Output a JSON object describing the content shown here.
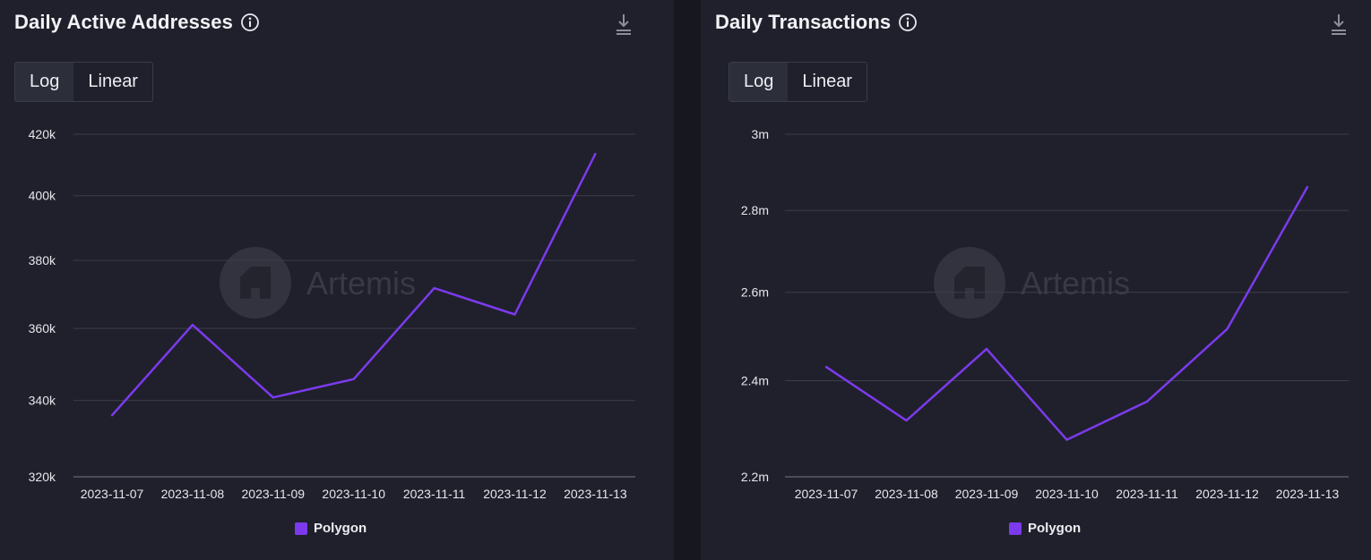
{
  "colors": {
    "series": "#7c3aed",
    "grid": "#3b3d4b",
    "axis": "#4a4c5a",
    "tick": "#e6e7ec",
    "watermark": "#4a4b56"
  },
  "watermark": {
    "text": "Artemis"
  },
  "panels": [
    {
      "title": "Daily Active Addresses",
      "toggle": {
        "options": [
          "Log",
          "Linear"
        ],
        "selected": "Log"
      },
      "legend": "Polygon"
    },
    {
      "title": "Daily Transactions",
      "toggle": {
        "options": [
          "Log",
          "Linear"
        ],
        "selected": "Log"
      },
      "legend": "Polygon"
    }
  ],
  "chart_data": [
    {
      "type": "line",
      "title": "Daily Active Addresses",
      "scale": "log",
      "x": [
        "2023-11-07",
        "2023-11-08",
        "2023-11-09",
        "2023-11-10",
        "2023-11-11",
        "2023-11-12",
        "2023-11-13"
      ],
      "series": [
        {
          "name": "Polygon",
          "values": [
            336000,
            361000,
            340800,
            345800,
            371700,
            364000,
            413500
          ]
        }
      ],
      "yticks": [
        320000,
        340000,
        360000,
        380000,
        400000,
        420000
      ],
      "ytick_labels": [
        "320k",
        "340k",
        "360k",
        "380k",
        "400k",
        "420k"
      ],
      "ylim": [
        320000,
        420000
      ],
      "grid": true,
      "legend_position": "bottom-center"
    },
    {
      "type": "line",
      "title": "Daily Transactions",
      "scale": "log",
      "x": [
        "2023-11-07",
        "2023-11-08",
        "2023-11-09",
        "2023-11-10",
        "2023-11-11",
        "2023-11-12",
        "2023-11-13"
      ],
      "series": [
        {
          "name": "Polygon",
          "values": [
            2430000,
            2315000,
            2470000,
            2275000,
            2355000,
            2515000,
            2860000
          ]
        }
      ],
      "yticks": [
        2200000,
        2400000,
        2600000,
        2800000,
        3000000
      ],
      "ytick_labels": [
        "2.2m",
        "2.4m",
        "2.6m",
        "2.8m",
        "3m"
      ],
      "ylim": [
        2200000,
        3000000
      ],
      "grid": true,
      "legend_position": "bottom-center"
    }
  ]
}
